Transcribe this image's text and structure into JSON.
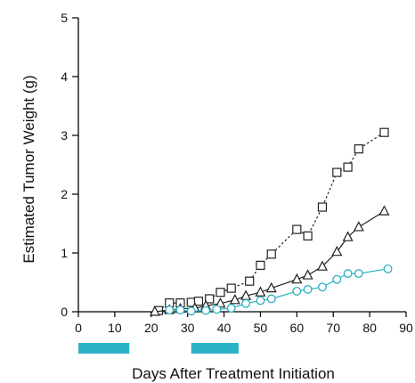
{
  "chart_data": {
    "type": "line",
    "title": "",
    "xlabel": "Days After Treatment Initiation",
    "ylabel": "Estimated Tumor Weight (g)",
    "xlim": [
      0,
      90
    ],
    "ylim": [
      0,
      5
    ],
    "x_ticks": [
      "0",
      "10",
      "20",
      "30",
      "40",
      "50",
      "60",
      "70",
      "80",
      "90"
    ],
    "y_ticks": [
      "0",
      "1",
      "2",
      "3",
      "4",
      "5"
    ],
    "grid": false,
    "legend": "none",
    "treatment_periods": [
      [
        0,
        14
      ],
      [
        31,
        44
      ]
    ],
    "treatment_color": "#2bb1c4",
    "series": [
      {
        "marker": "square",
        "line_style": "dotted",
        "color": "#222222",
        "x": [
          22,
          25,
          28,
          31,
          33,
          36,
          39,
          42,
          47,
          50,
          53,
          60,
          63,
          67,
          71,
          74,
          77,
          84
        ],
        "y": [
          0.02,
          0.15,
          0.15,
          0.16,
          0.18,
          0.22,
          0.33,
          0.4,
          0.52,
          0.79,
          0.98,
          1.4,
          1.29,
          1.78,
          2.37,
          2.46,
          2.77,
          3.05
        ]
      },
      {
        "marker": "triangle",
        "line_style": "solid",
        "color": "#222222",
        "x": [
          21,
          25,
          28,
          32,
          35,
          39,
          43,
          46,
          50,
          53,
          60,
          63,
          67,
          71,
          74,
          77,
          84
        ],
        "y": [
          0.0,
          0.03,
          0.05,
          0.06,
          0.1,
          0.14,
          0.2,
          0.27,
          0.33,
          0.4,
          0.55,
          0.62,
          0.77,
          1.02,
          1.27,
          1.44,
          1.71
        ]
      },
      {
        "marker": "circle",
        "line_style": "solid",
        "color": "#2bb1c4",
        "x": [
          25,
          28,
          31,
          35,
          38,
          42,
          46,
          50,
          53,
          60,
          63,
          67,
          71,
          74,
          77,
          85
        ],
        "y": [
          0.03,
          0.03,
          0.01,
          0.02,
          0.04,
          0.06,
          0.14,
          0.19,
          0.22,
          0.35,
          0.38,
          0.42,
          0.55,
          0.65,
          0.65,
          0.73
        ]
      }
    ]
  }
}
